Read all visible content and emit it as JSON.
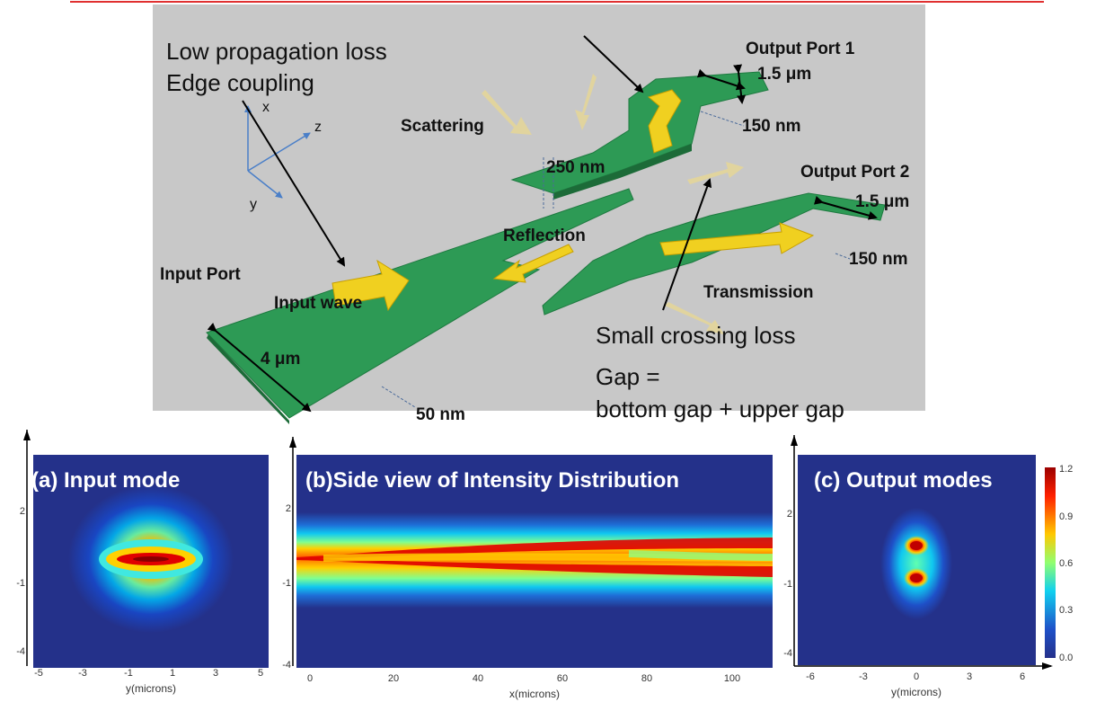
{
  "diagram": {
    "labels": {
      "low_loss": "Low propagation loss",
      "edge_coupling": "Edge coupling",
      "axis_x": "x",
      "axis_y": "y",
      "axis_z": "z",
      "scattering": "Scattering",
      "output_port_1": "Output Port 1",
      "width_1": "1.5 μm",
      "thickness_1": "150 nm",
      "height_250": "250 nm",
      "output_port_2": "Output Port 2",
      "width_2": "1.5 μm",
      "thickness_2": "150 nm",
      "reflection": "Reflection",
      "input_port": "Input Port",
      "input_wave": "Input wave",
      "transmission": "Transmission",
      "small_crossing_loss": "Small crossing loss",
      "gap_line1": "Gap =",
      "gap_line2": "bottom gap + upper gap",
      "input_width": "4 μm",
      "input_thickness": "50 nm"
    }
  },
  "panels": {
    "a": {
      "title": "(a) Input mode",
      "xlabel": "y(microns)",
      "xticks": [
        "-5",
        "-3",
        "-1",
        "1",
        "3",
        "5"
      ],
      "yticks": [
        "2",
        "-1",
        "-4"
      ]
    },
    "b": {
      "title": "(b)Side view of Intensity Distribution",
      "xlabel": "x(microns)",
      "xticks": [
        "0",
        "20",
        "40",
        "60",
        "80",
        "100"
      ],
      "yticks": [
        "2",
        "-1",
        "-4"
      ]
    },
    "c": {
      "title": "(c) Output modes",
      "xlabel": "y(microns)",
      "xticks": [
        "-6",
        "-3",
        "0",
        "3",
        "6"
      ],
      "yticks": [
        "2",
        "-1",
        "-4"
      ]
    }
  },
  "colorbar": {
    "ticks": [
      "1.2",
      "0.9",
      "0.6",
      "0.3",
      "0.0"
    ]
  },
  "colors": {
    "waveguide": "#2e9a56",
    "arrow": "#f0d020",
    "background_panel": "#c8c8c8",
    "accent_line": "#e03030"
  }
}
